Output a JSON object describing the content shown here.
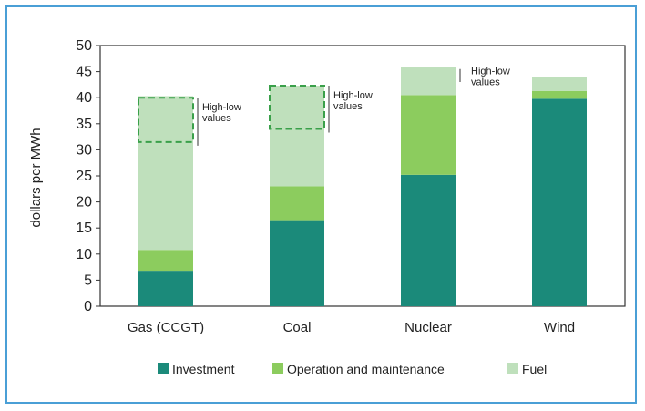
{
  "chart_data": {
    "type": "bar",
    "stacked": true,
    "title": "",
    "xlabel": "",
    "ylabel": "dollars per MWh",
    "ylim": [
      0,
      50
    ],
    "yticks": [
      0,
      5,
      10,
      15,
      20,
      25,
      30,
      35,
      40,
      45,
      50
    ],
    "categories": [
      "Gas (CCGT)",
      "Coal",
      "Nuclear",
      "Wind"
    ],
    "series": [
      {
        "name": "Investment",
        "color": "#1b8a7a",
        "values": [
          6.8,
          16.5,
          25.2,
          39.8
        ]
      },
      {
        "name": "Operation and maintenance",
        "color": "#8ccc5e",
        "values": [
          4.0,
          6.5,
          15.3,
          1.5
        ]
      },
      {
        "name": "Fuel",
        "color": "#bfe0bc",
        "values": [
          29.5,
          19.3,
          5.3,
          2.7
        ]
      }
    ],
    "ranges": [
      {
        "category": "Gas (CCGT)",
        "low": 31.5,
        "high": 40.0,
        "label": [
          "High-low",
          "values"
        ]
      },
      {
        "category": "Coal",
        "low": 34.0,
        "high": 42.3,
        "label": [
          "High-low",
          "values"
        ]
      },
      {
        "category": "Nuclear",
        "low": 40.5,
        "high": 45.5,
        "label": [
          "High-low",
          "values"
        ]
      }
    ],
    "legend": {
      "position": "bottom",
      "entries": [
        "Investment",
        "Operation and maintenance",
        "Fuel"
      ]
    },
    "grid": false
  }
}
